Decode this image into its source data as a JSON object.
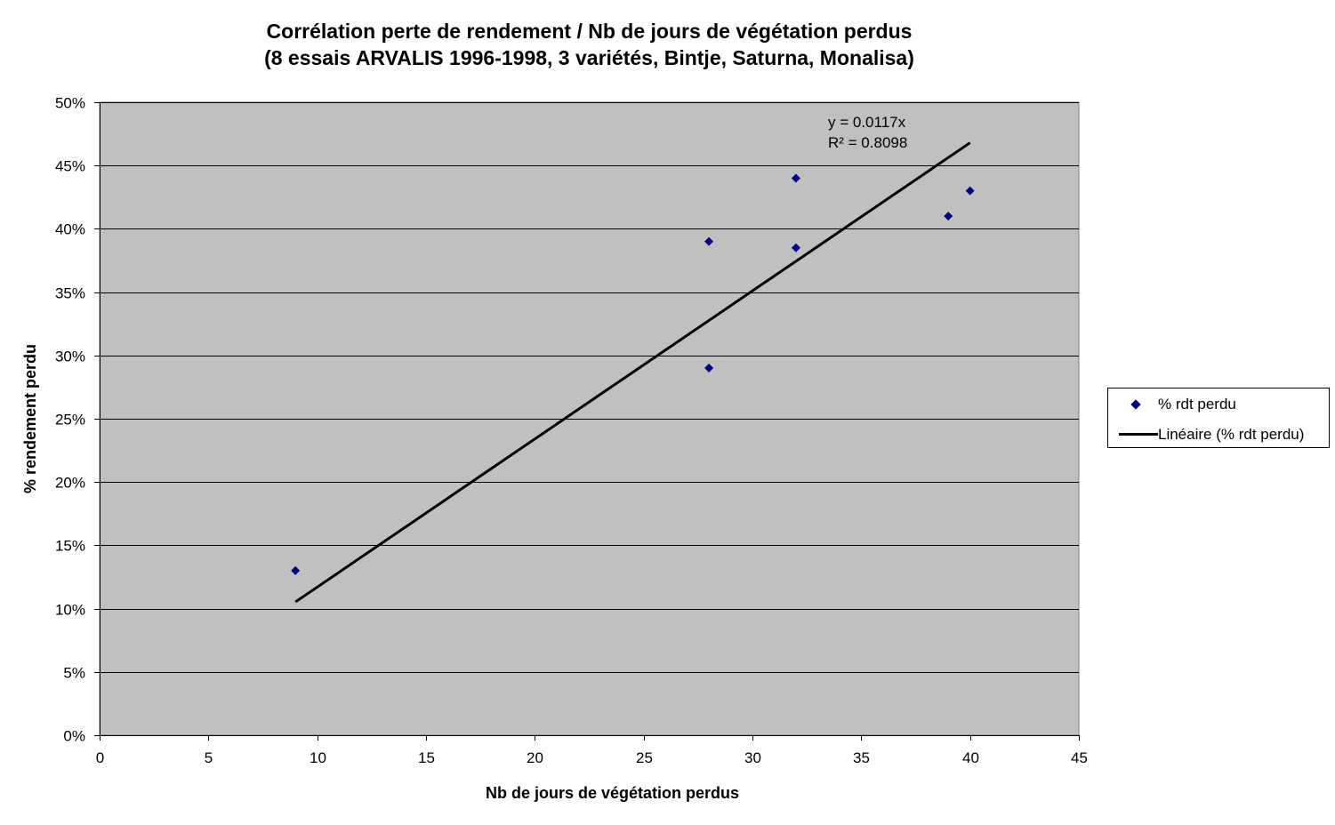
{
  "chart_data": {
    "type": "scatter",
    "title_line1": "Corrélation perte de rendement / Nb de jours de végétation perdus",
    "title_line2": "(8 essais ARVALIS 1996-1998, 3 variétés, Bintje, Saturna, Monalisa)",
    "xlabel": "Nb de jours de végétation perdus",
    "ylabel": "% rendement perdu",
    "xlim": [
      0,
      45
    ],
    "ylim": [
      0,
      0.5
    ],
    "x_ticks": [
      0,
      5,
      10,
      15,
      20,
      25,
      30,
      35,
      40,
      45
    ],
    "y_ticks": [
      0,
      0.05,
      0.1,
      0.15,
      0.2,
      0.25,
      0.3,
      0.35,
      0.4,
      0.45,
      0.5
    ],
    "x_tick_labels": [
      "0",
      "5",
      "10",
      "15",
      "20",
      "25",
      "30",
      "35",
      "40",
      "45"
    ],
    "y_tick_labels": [
      "0%",
      "5%",
      "10%",
      "15%",
      "20%",
      "25%",
      "30%",
      "35%",
      "40%",
      "45%",
      "50%"
    ],
    "grid": "horizontal",
    "legend_position": "right",
    "series": [
      {
        "name": "% rdt perdu",
        "marker": "diamond",
        "color": "#000080",
        "points": [
          {
            "x": 9,
            "y": 0.13
          },
          {
            "x": 28,
            "y": 0.39
          },
          {
            "x": 28,
            "y": 0.29
          },
          {
            "x": 32,
            "y": 0.44
          },
          {
            "x": 32,
            "y": 0.385
          },
          {
            "x": 39,
            "y": 0.41
          },
          {
            "x": 40,
            "y": 0.43
          }
        ]
      }
    ],
    "trendline": {
      "name": "Linéaire (% rdt perdu)",
      "type": "linear",
      "slope": 0.0117,
      "x_range": [
        9,
        40
      ],
      "color": "#000000",
      "equation": "y = 0.0117x",
      "r2": "R² = 0.8098"
    },
    "plot_background": "#c0c0c0"
  }
}
